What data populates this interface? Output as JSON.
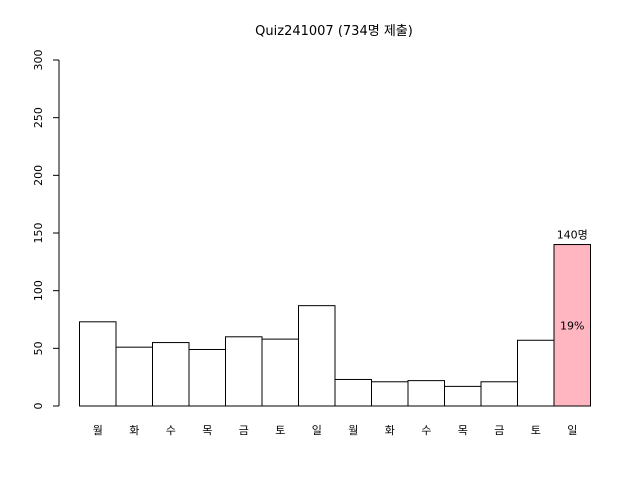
{
  "chart_data": {
    "type": "bar",
    "title": "Quiz241007 (734명 제출)",
    "xlabel": "",
    "ylabel": "",
    "ylim": [
      0,
      300
    ],
    "yticks": [
      0,
      50,
      100,
      150,
      200,
      250,
      300
    ],
    "categories": [
      "월",
      "화",
      "수",
      "목",
      "금",
      "토",
      "일",
      "월",
      "화",
      "수",
      "목",
      "금",
      "토",
      "일"
    ],
    "values": [
      73,
      51,
      55,
      49,
      60,
      58,
      87,
      23,
      21,
      22,
      17,
      21,
      57,
      140
    ],
    "bar_fill": "#ffffff",
    "highlight_index": 13,
    "highlight_fill": "#ffb6c1",
    "highlight_top_label": "140명",
    "highlight_inner_label": "19%"
  }
}
